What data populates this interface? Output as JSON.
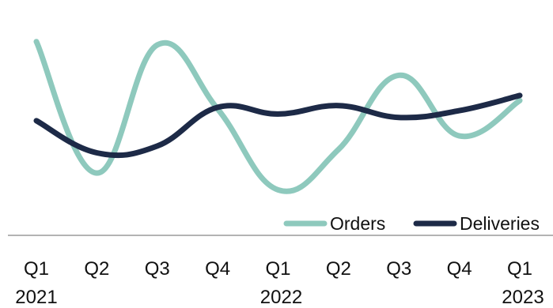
{
  "chart_data": {
    "type": "line",
    "categories": [
      "Q1",
      "Q2",
      "Q3",
      "Q4",
      "Q1",
      "Q2",
      "Q3",
      "Q4",
      "Q1"
    ],
    "year_groups": [
      {
        "label": "2021",
        "start": 0,
        "end": 3
      },
      {
        "label": "2022",
        "start": 4,
        "end": 7
      },
      {
        "label": "2023",
        "start": 8,
        "end": 8
      }
    ],
    "series": [
      {
        "name": "Orders",
        "color": "#8ec9bd",
        "values": [
          100,
          22,
          98,
          60,
          12,
          36,
          80,
          44,
          65
        ]
      },
      {
        "name": "Deliveries",
        "color": "#1d2a47",
        "values": [
          53,
          34,
          38,
          61,
          57,
          62,
          55,
          59,
          68
        ]
      }
    ],
    "ylim": [
      0,
      105
    ],
    "grid": false,
    "legend": "bottom-right",
    "axis_color": "#9a9a9a"
  }
}
